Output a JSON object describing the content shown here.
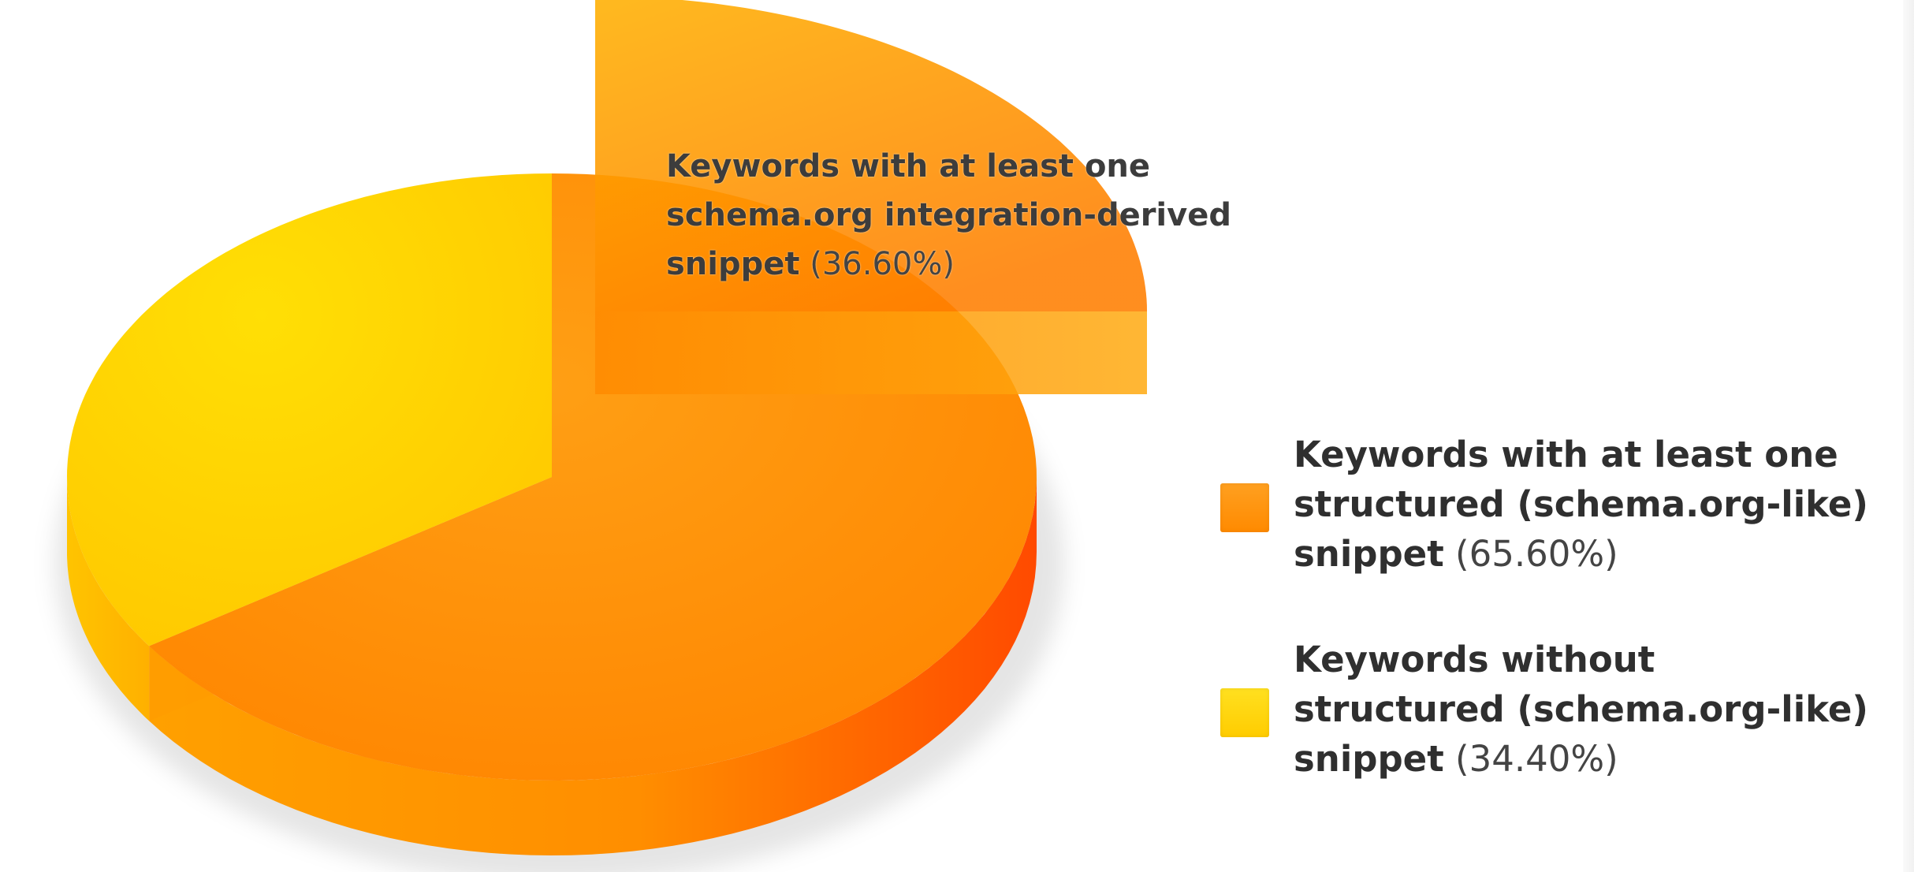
{
  "chart_data": {
    "type": "pie",
    "style": "3d",
    "legend_position": "right",
    "slices": [
      {
        "label_lines": [
          "Keywords with at least one",
          "structured (schema.org-like)",
          "snippet"
        ],
        "percent_text": "(65.60%)",
        "value": 65.6,
        "color": "#FF8C00"
      },
      {
        "label_lines": [
          "Keywords without",
          "structured (schema.org-like)",
          "snippet"
        ],
        "percent_text": "(34.40%)",
        "value": 34.4,
        "color": "#FFD400"
      }
    ],
    "exploded_slice": {
      "label_lines": [
        "Keywords with at least one",
        "schema.org integration-derived",
        "snippet"
      ],
      "percent_text": "(36.60%)",
      "value": 36.6,
      "color": "#FF9A00"
    }
  }
}
